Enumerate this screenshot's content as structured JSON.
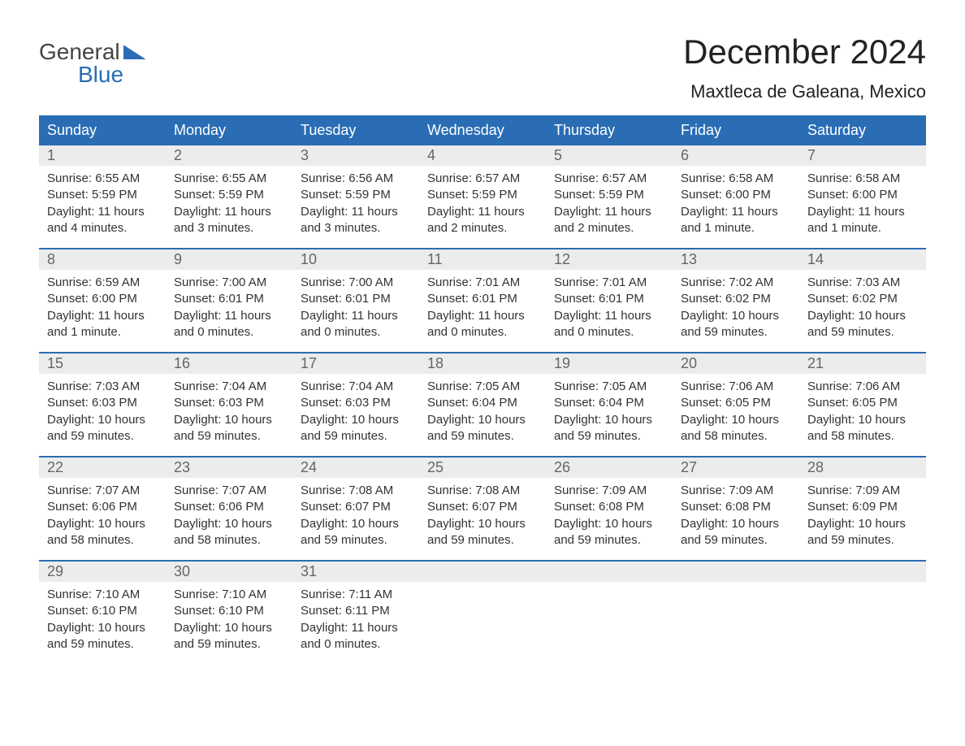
{
  "logo": {
    "line1": "General",
    "line2": "Blue"
  },
  "title": "December 2024",
  "location": "Maxtleca de Galeana, Mexico",
  "weekdays": [
    "Sunday",
    "Monday",
    "Tuesday",
    "Wednesday",
    "Thursday",
    "Friday",
    "Saturday"
  ],
  "colors": {
    "header_bg": "#2a6db5",
    "header_text": "#ffffff",
    "daynum_bg": "#ececec",
    "daynum_text": "#666666",
    "body_text": "#333333",
    "page_bg": "#ffffff",
    "rule": "#2a6db5"
  },
  "typography": {
    "title_fontsize": 42,
    "location_fontsize": 22,
    "weekday_fontsize": 18,
    "daynum_fontsize": 18,
    "body_fontsize": 15
  },
  "labels": {
    "sunrise": "Sunrise:",
    "sunset": "Sunset:",
    "daylight": "Daylight:"
  },
  "weeks": [
    [
      {
        "n": "1",
        "sunrise": "6:55 AM",
        "sunset": "5:59 PM",
        "daylight": "11 hours and 4 minutes."
      },
      {
        "n": "2",
        "sunrise": "6:55 AM",
        "sunset": "5:59 PM",
        "daylight": "11 hours and 3 minutes."
      },
      {
        "n": "3",
        "sunrise": "6:56 AM",
        "sunset": "5:59 PM",
        "daylight": "11 hours and 3 minutes."
      },
      {
        "n": "4",
        "sunrise": "6:57 AM",
        "sunset": "5:59 PM",
        "daylight": "11 hours and 2 minutes."
      },
      {
        "n": "5",
        "sunrise": "6:57 AM",
        "sunset": "5:59 PM",
        "daylight": "11 hours and 2 minutes."
      },
      {
        "n": "6",
        "sunrise": "6:58 AM",
        "sunset": "6:00 PM",
        "daylight": "11 hours and 1 minute."
      },
      {
        "n": "7",
        "sunrise": "6:58 AM",
        "sunset": "6:00 PM",
        "daylight": "11 hours and 1 minute."
      }
    ],
    [
      {
        "n": "8",
        "sunrise": "6:59 AM",
        "sunset": "6:00 PM",
        "daylight": "11 hours and 1 minute."
      },
      {
        "n": "9",
        "sunrise": "7:00 AM",
        "sunset": "6:01 PM",
        "daylight": "11 hours and 0 minutes."
      },
      {
        "n": "10",
        "sunrise": "7:00 AM",
        "sunset": "6:01 PM",
        "daylight": "11 hours and 0 minutes."
      },
      {
        "n": "11",
        "sunrise": "7:01 AM",
        "sunset": "6:01 PM",
        "daylight": "11 hours and 0 minutes."
      },
      {
        "n": "12",
        "sunrise": "7:01 AM",
        "sunset": "6:01 PM",
        "daylight": "11 hours and 0 minutes."
      },
      {
        "n": "13",
        "sunrise": "7:02 AM",
        "sunset": "6:02 PM",
        "daylight": "10 hours and 59 minutes."
      },
      {
        "n": "14",
        "sunrise": "7:03 AM",
        "sunset": "6:02 PM",
        "daylight": "10 hours and 59 minutes."
      }
    ],
    [
      {
        "n": "15",
        "sunrise": "7:03 AM",
        "sunset": "6:03 PM",
        "daylight": "10 hours and 59 minutes."
      },
      {
        "n": "16",
        "sunrise": "7:04 AM",
        "sunset": "6:03 PM",
        "daylight": "10 hours and 59 minutes."
      },
      {
        "n": "17",
        "sunrise": "7:04 AM",
        "sunset": "6:03 PM",
        "daylight": "10 hours and 59 minutes."
      },
      {
        "n": "18",
        "sunrise": "7:05 AM",
        "sunset": "6:04 PM",
        "daylight": "10 hours and 59 minutes."
      },
      {
        "n": "19",
        "sunrise": "7:05 AM",
        "sunset": "6:04 PM",
        "daylight": "10 hours and 59 minutes."
      },
      {
        "n": "20",
        "sunrise": "7:06 AM",
        "sunset": "6:05 PM",
        "daylight": "10 hours and 58 minutes."
      },
      {
        "n": "21",
        "sunrise": "7:06 AM",
        "sunset": "6:05 PM",
        "daylight": "10 hours and 58 minutes."
      }
    ],
    [
      {
        "n": "22",
        "sunrise": "7:07 AM",
        "sunset": "6:06 PM",
        "daylight": "10 hours and 58 minutes."
      },
      {
        "n": "23",
        "sunrise": "7:07 AM",
        "sunset": "6:06 PM",
        "daylight": "10 hours and 58 minutes."
      },
      {
        "n": "24",
        "sunrise": "7:08 AM",
        "sunset": "6:07 PM",
        "daylight": "10 hours and 59 minutes."
      },
      {
        "n": "25",
        "sunrise": "7:08 AM",
        "sunset": "6:07 PM",
        "daylight": "10 hours and 59 minutes."
      },
      {
        "n": "26",
        "sunrise": "7:09 AM",
        "sunset": "6:08 PM",
        "daylight": "10 hours and 59 minutes."
      },
      {
        "n": "27",
        "sunrise": "7:09 AM",
        "sunset": "6:08 PM",
        "daylight": "10 hours and 59 minutes."
      },
      {
        "n": "28",
        "sunrise": "7:09 AM",
        "sunset": "6:09 PM",
        "daylight": "10 hours and 59 minutes."
      }
    ],
    [
      {
        "n": "29",
        "sunrise": "7:10 AM",
        "sunset": "6:10 PM",
        "daylight": "10 hours and 59 minutes."
      },
      {
        "n": "30",
        "sunrise": "7:10 AM",
        "sunset": "6:10 PM",
        "daylight": "10 hours and 59 minutes."
      },
      {
        "n": "31",
        "sunrise": "7:11 AM",
        "sunset": "6:11 PM",
        "daylight": "11 hours and 0 minutes."
      },
      null,
      null,
      null,
      null
    ]
  ]
}
